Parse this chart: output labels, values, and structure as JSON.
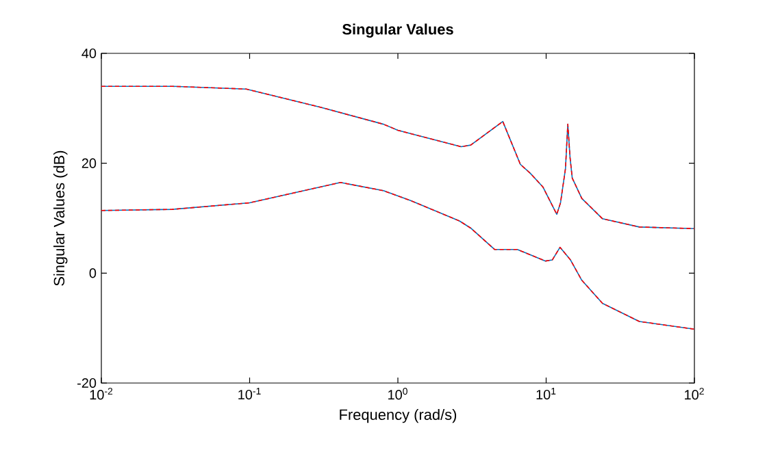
{
  "chart_data": {
    "type": "line",
    "title": "Singular Values",
    "xlabel": "Frequency (rad/s)",
    "ylabel": "Singular Values (dB)",
    "log": "x",
    "xlim": [
      0.01,
      100
    ],
    "ylim": [
      -20,
      40
    ],
    "xticks": [
      {
        "value": 0.01,
        "label": "10$^{-2}$"
      },
      {
        "value": 0.1,
        "label": "10$^{-1}$"
      },
      {
        "value": 1,
        "label": "10$^{0}$"
      },
      {
        "value": 10,
        "label": "10$^{1}$"
      },
      {
        "value": 100,
        "label": "10$^{2}$"
      }
    ],
    "yticks": [
      -20,
      0,
      20,
      40
    ],
    "series": [
      {
        "color": "#0072bd",
        "line_style": "solid",
        "x": [
          0.01,
          0.03,
          0.095,
          0.3,
          0.8,
          1.0,
          2.67,
          3.1,
          5.1,
          6.7,
          7.8,
          9.5,
          11.8,
          12.5,
          13.5,
          14.0,
          14.5,
          15.0,
          17.4,
          24.0,
          42.5,
          100
        ],
        "values": [
          34.0,
          34.0,
          33.5,
          30.2,
          27.1,
          26.0,
          23.0,
          23.3,
          27.6,
          19.8,
          18.2,
          15.7,
          10.7,
          12.8,
          19.0,
          27.1,
          21.0,
          17.3,
          13.6,
          9.9,
          8.4,
          8.1
        ]
      },
      {
        "color": "#0072bd",
        "line_style": "solid",
        "x": [
          0.01,
          0.03,
          0.1,
          0.41,
          0.8,
          1.22,
          2.6,
          3.1,
          4.5,
          6.4,
          9.9,
          11.0,
          12.4,
          14.6,
          17.4,
          24.0,
          42.5,
          100
        ],
        "values": [
          11.4,
          11.6,
          12.8,
          16.5,
          15.0,
          13.2,
          9.5,
          8.2,
          4.3,
          4.3,
          2.2,
          2.4,
          4.7,
          2.4,
          -1.3,
          -5.5,
          -8.8,
          -10.2
        ]
      },
      {
        "color": "#ff0000",
        "line_style": "dashed",
        "x": [
          0.01,
          0.03,
          0.095,
          0.3,
          0.8,
          1.0,
          2.67,
          3.1,
          5.1,
          6.7,
          7.8,
          9.5,
          11.8,
          12.5,
          13.5,
          14.0,
          14.5,
          15.0,
          17.4,
          24.0,
          42.5,
          100
        ],
        "values": [
          34.0,
          34.0,
          33.5,
          30.2,
          27.1,
          26.0,
          23.0,
          23.3,
          27.6,
          19.8,
          18.2,
          15.7,
          10.7,
          12.8,
          19.0,
          27.1,
          21.0,
          17.3,
          13.6,
          9.9,
          8.4,
          8.1
        ]
      },
      {
        "color": "#ff0000",
        "line_style": "dashed",
        "x": [
          0.01,
          0.03,
          0.1,
          0.41,
          0.8,
          1.22,
          2.6,
          3.1,
          4.5,
          6.4,
          9.9,
          11.0,
          12.4,
          14.6,
          17.4,
          24.0,
          42.5,
          100
        ],
        "values": [
          11.4,
          11.6,
          12.8,
          16.5,
          15.0,
          13.2,
          9.5,
          8.2,
          4.3,
          4.3,
          2.2,
          2.4,
          4.7,
          2.4,
          -1.3,
          -5.5,
          -8.8,
          -10.2
        ]
      }
    ]
  }
}
